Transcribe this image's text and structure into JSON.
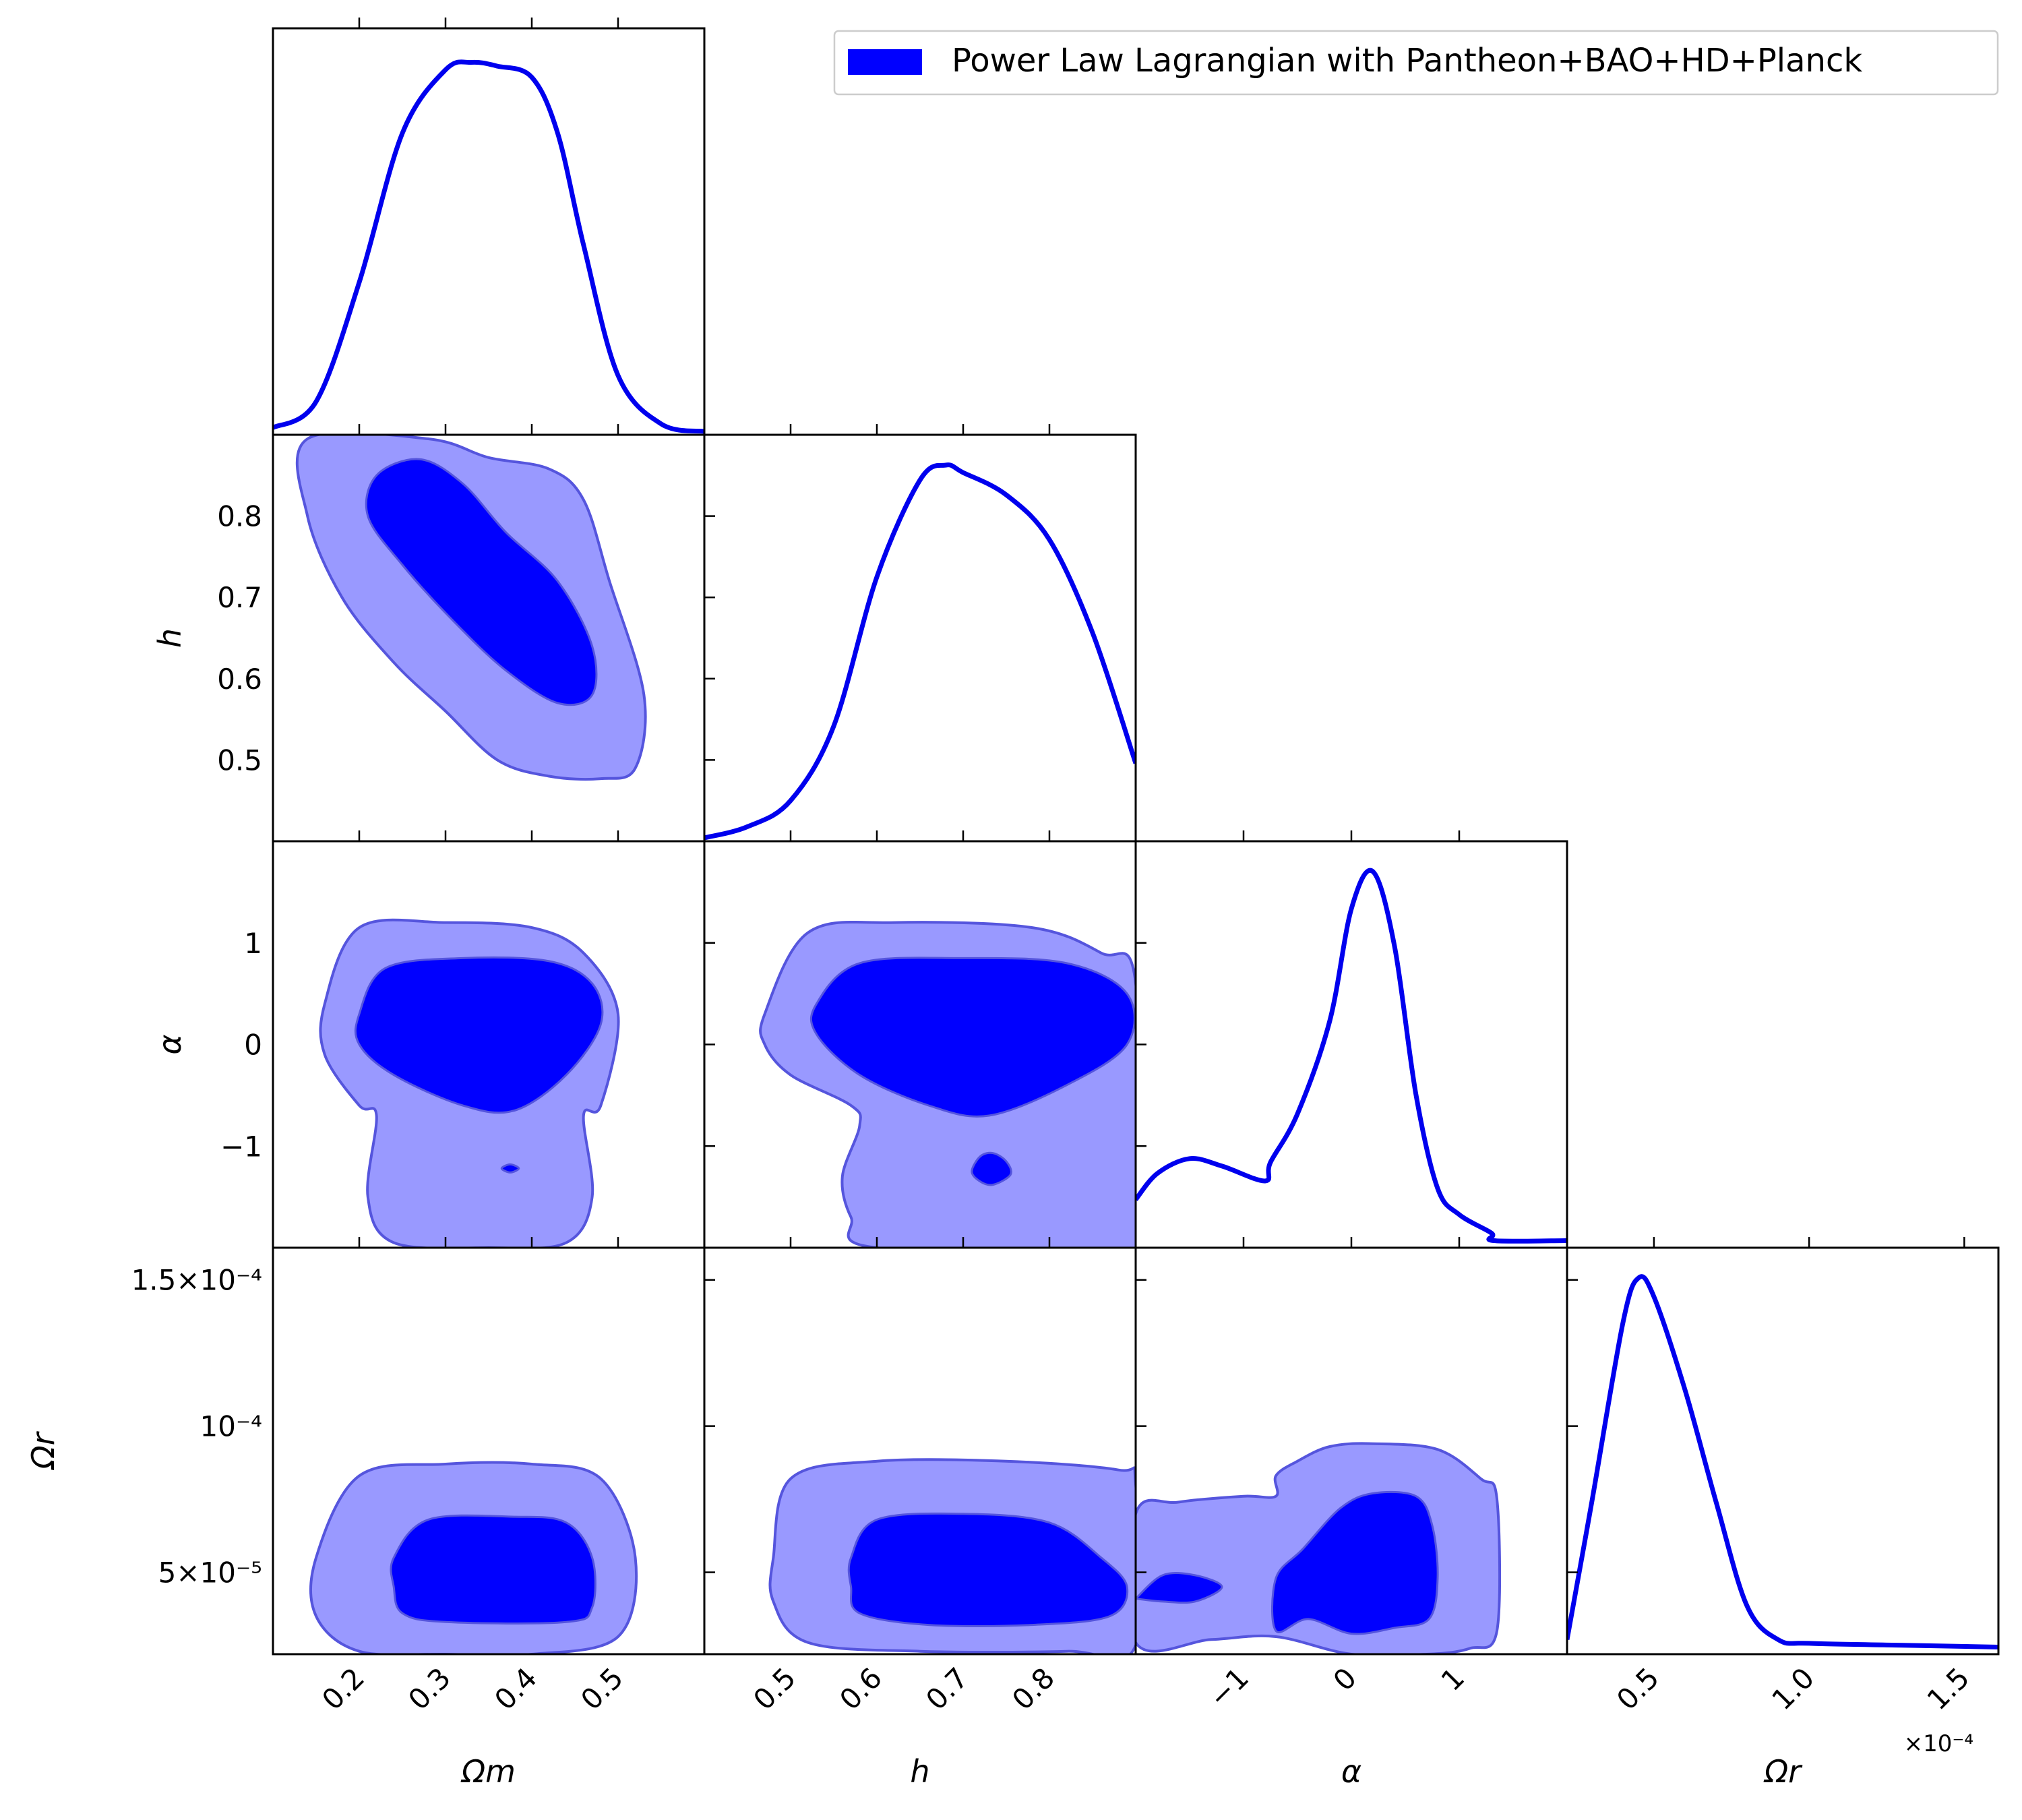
{
  "colors": {
    "line": "#0000ee",
    "inner_fill": "#0000ff",
    "outer_fill": "#9999ff",
    "contour_edge": "#5555dd"
  },
  "legend": {
    "label": "Power Law Lagrangian with Pantheon+BAO+HD+Planck",
    "placement": "top-right"
  },
  "offset_label": "×10⁻⁴",
  "chart_data": {
    "type": "triangle-corner-plot",
    "parameters": [
      {
        "id": "Om",
        "label": "Ωm",
        "range": [
          0.1,
          0.6
        ],
        "ticks": [
          0.2,
          0.3,
          0.4,
          0.5
        ],
        "tick_labels": [
          "0.2",
          "0.3",
          "0.4",
          "0.5"
        ]
      },
      {
        "id": "h",
        "label": "h",
        "range": [
          0.4,
          0.9
        ],
        "ticks": [
          0.5,
          0.6,
          0.7,
          0.8
        ],
        "tick_labels": [
          "0.5",
          "0.6",
          "0.7",
          "0.8"
        ]
      },
      {
        "id": "alpha",
        "label": "α",
        "range": [
          -2.0,
          2.0
        ],
        "ticks": [
          -1,
          0,
          1
        ],
        "tick_labels": [
          "−1",
          "0",
          "1"
        ]
      },
      {
        "id": "Or",
        "label": "Ωr",
        "range": [
          2.2e-05,
          0.000161
        ],
        "ticks": [
          5e-05,
          0.0001,
          0.00015
        ],
        "tick_labels": [
          "5×10⁻⁵",
          "10⁻⁴",
          "1.5×10⁻⁴"
        ],
        "bottom_ticks": [
          5e-05,
          0.0001,
          0.00015
        ],
        "bottom_tick_labels": [
          "0.5",
          "1.0",
          "1.5"
        ]
      }
    ],
    "marginals": {
      "Om": [
        [
          0.1,
          0.01
        ],
        [
          0.15,
          0.08
        ],
        [
          0.2,
          0.4
        ],
        [
          0.25,
          0.8
        ],
        [
          0.3,
          0.97
        ],
        [
          0.33,
          0.99
        ],
        [
          0.36,
          0.98
        ],
        [
          0.4,
          0.95
        ],
        [
          0.43,
          0.8
        ],
        [
          0.46,
          0.5
        ],
        [
          0.5,
          0.15
        ],
        [
          0.55,
          0.02
        ],
        [
          0.6,
          0.0
        ]
      ],
      "h": [
        [
          0.4,
          0.0
        ],
        [
          0.45,
          0.03
        ],
        [
          0.5,
          0.1
        ],
        [
          0.55,
          0.3
        ],
        [
          0.6,
          0.7
        ],
        [
          0.65,
          0.96
        ],
        [
          0.68,
          1.0
        ],
        [
          0.7,
          0.98
        ],
        [
          0.75,
          0.92
        ],
        [
          0.8,
          0.8
        ],
        [
          0.85,
          0.55
        ],
        [
          0.9,
          0.2
        ]
      ],
      "alpha": [
        [
          -2.0,
          0.12
        ],
        [
          -1.8,
          0.19
        ],
        [
          -1.5,
          0.23
        ],
        [
          -1.2,
          0.21
        ],
        [
          -0.8,
          0.17
        ],
        [
          -0.75,
          0.22
        ],
        [
          -0.5,
          0.35
        ],
        [
          -0.2,
          0.6
        ],
        [
          0.0,
          0.9
        ],
        [
          0.2,
          1.0
        ],
        [
          0.4,
          0.8
        ],
        [
          0.6,
          0.4
        ],
        [
          0.8,
          0.15
        ],
        [
          1.0,
          0.08
        ],
        [
          1.3,
          0.03
        ],
        [
          1.32,
          0.01
        ],
        [
          2.0,
          0.01
        ]
      ],
      "Or": [
        [
          2.2e-05,
          0.03
        ],
        [
          3e-05,
          0.4
        ],
        [
          4e-05,
          0.88
        ],
        [
          4.5e-05,
          1.0
        ],
        [
          5e-05,
          0.95
        ],
        [
          6e-05,
          0.7
        ],
        [
          7e-05,
          0.4
        ],
        [
          8e-05,
          0.12
        ],
        [
          9e-05,
          0.03
        ],
        [
          0.0001,
          0.02
        ],
        [
          0.00013,
          0.015
        ],
        [
          0.000161,
          0.01
        ]
      ]
    },
    "contours": [
      {
        "x": "Om",
        "y": "h",
        "outer": [
          [
            0.14,
            0.895
          ],
          [
            0.28,
            0.895
          ],
          [
            0.35,
            0.872
          ],
          [
            0.42,
            0.858
          ],
          [
            0.46,
            0.82
          ],
          [
            0.49,
            0.72
          ],
          [
            0.53,
            0.58
          ],
          [
            0.52,
            0.49
          ],
          [
            0.48,
            0.477
          ],
          [
            0.42,
            0.48
          ],
          [
            0.36,
            0.5
          ],
          [
            0.3,
            0.56
          ],
          [
            0.24,
            0.62
          ],
          [
            0.18,
            0.7
          ],
          [
            0.14,
            0.8
          ]
        ],
        "inner": [
          [
            [
              0.22,
              0.85
            ],
            [
              0.27,
              0.87
            ],
            [
              0.32,
              0.84
            ],
            [
              0.37,
              0.78
            ],
            [
              0.43,
              0.72
            ],
            [
              0.47,
              0.64
            ],
            [
              0.47,
              0.58
            ],
            [
              0.43,
              0.57
            ],
            [
              0.37,
              0.61
            ],
            [
              0.31,
              0.67
            ],
            [
              0.25,
              0.74
            ],
            [
              0.21,
              0.8
            ]
          ]
        ]
      },
      {
        "x": "Om",
        "y": "alpha",
        "outer": [
          [
            0.16,
            0.4
          ],
          [
            0.2,
            1.15
          ],
          [
            0.3,
            1.2
          ],
          [
            0.4,
            1.15
          ],
          [
            0.46,
            0.9
          ],
          [
            0.5,
            0.3
          ],
          [
            0.48,
            -0.6
          ],
          [
            0.46,
            -0.7
          ],
          [
            0.47,
            -1.5
          ],
          [
            0.44,
            -1.95
          ],
          [
            0.35,
            -2.0
          ],
          [
            0.24,
            -1.95
          ],
          [
            0.21,
            -1.5
          ],
          [
            0.22,
            -0.7
          ],
          [
            0.2,
            -0.6
          ],
          [
            0.16,
            -0.1
          ]
        ],
        "inner": [
          [
            [
              0.2,
              0.3
            ],
            [
              0.23,
              0.75
            ],
            [
              0.32,
              0.85
            ],
            [
              0.42,
              0.82
            ],
            [
              0.47,
              0.6
            ],
            [
              0.48,
              0.2
            ],
            [
              0.44,
              -0.3
            ],
            [
              0.38,
              -0.65
            ],
            [
              0.32,
              -0.6
            ],
            [
              0.24,
              -0.3
            ],
            [
              0.2,
              0.0
            ]
          ],
          [
            [
              0.365,
              -1.22
            ],
            [
              0.375,
              -1.18
            ],
            [
              0.385,
              -1.22
            ],
            [
              0.375,
              -1.26
            ]
          ]
        ]
      },
      {
        "x": "h",
        "y": "alpha",
        "outer": [
          [
            0.47,
            0.3
          ],
          [
            0.52,
            1.1
          ],
          [
            0.62,
            1.2
          ],
          [
            0.78,
            1.15
          ],
          [
            0.86,
            0.9
          ],
          [
            0.9,
            0.6
          ],
          [
            0.9,
            -2.0
          ],
          [
            0.6,
            -2.0
          ],
          [
            0.57,
            -1.7
          ],
          [
            0.56,
            -1.3
          ],
          [
            0.58,
            -0.8
          ],
          [
            0.57,
            -0.6
          ],
          [
            0.5,
            -0.3
          ],
          [
            0.47,
            0.0
          ]
        ],
        "inner": [
          [
            [
              0.53,
              0.4
            ],
            [
              0.58,
              0.8
            ],
            [
              0.7,
              0.85
            ],
            [
              0.82,
              0.8
            ],
            [
              0.89,
              0.5
            ],
            [
              0.89,
              0.0
            ],
            [
              0.82,
              -0.4
            ],
            [
              0.73,
              -0.7
            ],
            [
              0.66,
              -0.6
            ],
            [
              0.58,
              -0.3
            ],
            [
              0.53,
              0.1
            ]
          ],
          [
            [
              0.71,
              -1.25
            ],
            [
              0.72,
              -1.1
            ],
            [
              0.735,
              -1.07
            ],
            [
              0.75,
              -1.15
            ],
            [
              0.755,
              -1.28
            ],
            [
              0.735,
              -1.38
            ],
            [
              0.72,
              -1.35
            ]
          ]
        ]
      },
      {
        "x": "Om",
        "y": "Or",
        "outer": [
          [
            0.15,
            5.5e-05
          ],
          [
            0.2,
            8.3e-05
          ],
          [
            0.3,
            8.7e-05
          ],
          [
            0.4,
            8.7e-05
          ],
          [
            0.48,
            8.2e-05
          ],
          [
            0.52,
            5.5e-05
          ],
          [
            0.5,
            2.8e-05
          ],
          [
            0.4,
            2.2e-05
          ],
          [
            0.3,
            2.2e-05
          ],
          [
            0.2,
            2.3e-05
          ],
          [
            0.15,
            3.5e-05
          ]
        ],
        "inner": [
          [
            [
              0.24,
              5.5e-05
            ],
            [
              0.28,
              6.8e-05
            ],
            [
              0.38,
              6.9e-05
            ],
            [
              0.44,
              6.7e-05
            ],
            [
              0.47,
              5.5e-05
            ],
            [
              0.47,
              3.8e-05
            ],
            [
              0.44,
              3.3e-05
            ],
            [
              0.3,
              3.3e-05
            ],
            [
              0.25,
              3.6e-05
            ],
            [
              0.24,
              4.5e-05
            ]
          ]
        ]
      },
      {
        "x": "h",
        "y": "Or",
        "outer": [
          [
            0.48,
            5.5e-05
          ],
          [
            0.5,
            8.2e-05
          ],
          [
            0.6,
            8.8e-05
          ],
          [
            0.75,
            8.8e-05
          ],
          [
            0.88,
            8.5e-05
          ],
          [
            0.9,
            8e-05
          ],
          [
            0.9,
            2.5e-05
          ],
          [
            0.82,
            2.3e-05
          ],
          [
            0.65,
            2.3e-05
          ],
          [
            0.52,
            2.6e-05
          ],
          [
            0.48,
            4e-05
          ]
        ],
        "inner": [
          [
            [
              0.57,
              5.5e-05
            ],
            [
              0.6,
              6.8e-05
            ],
            [
              0.7,
              7e-05
            ],
            [
              0.8,
              6.7e-05
            ],
            [
              0.86,
              5.5e-05
            ],
            [
              0.89,
              4.5e-05
            ],
            [
              0.87,
              3.5e-05
            ],
            [
              0.78,
              3.2e-05
            ],
            [
              0.66,
              3.2e-05
            ],
            [
              0.58,
              3.6e-05
            ],
            [
              0.57,
              4.5e-05
            ]
          ]
        ]
      },
      {
        "x": "alpha",
        "y": "Or",
        "outer": [
          [
            -2.0,
            7e-05
          ],
          [
            -1.6,
            7.4e-05
          ],
          [
            -1.0,
            7.6e-05
          ],
          [
            -0.7,
            7.6e-05
          ],
          [
            -0.7,
            8.3e-05
          ],
          [
            -0.5,
            8.8e-05
          ],
          [
            -0.2,
            9.3e-05
          ],
          [
            0.2,
            9.4e-05
          ],
          [
            0.8,
            9.2e-05
          ],
          [
            1.2,
            8.2e-05
          ],
          [
            1.35,
            7.5e-05
          ],
          [
            1.35,
            3e-05
          ],
          [
            1.1,
            2.4e-05
          ],
          [
            0.7,
            2.2e-05
          ],
          [
            0.0,
            2.2e-05
          ],
          [
            -0.7,
            2.8e-05
          ],
          [
            -1.3,
            2.7e-05
          ],
          [
            -2.0,
            2.6e-05
          ]
        ],
        "inner": [
          [
            [
              -0.7,
              3e-05
            ],
            [
              -0.7,
              4.8e-05
            ],
            [
              -0.45,
              5.8e-05
            ],
            [
              -0.1,
              7.2e-05
            ],
            [
              0.2,
              7.7e-05
            ],
            [
              0.6,
              7.6e-05
            ],
            [
              0.75,
              6.6e-05
            ],
            [
              0.8,
              4.8e-05
            ],
            [
              0.72,
              3.4e-05
            ],
            [
              0.4,
              3.1e-05
            ],
            [
              0.0,
              2.9e-05
            ],
            [
              -0.4,
              3.4e-05
            ]
          ],
          [
            [
              -2.0,
              4.1e-05
            ],
            [
              -1.75,
              4.9e-05
            ],
            [
              -1.45,
              4.9e-05
            ],
            [
              -1.2,
              4.5e-05
            ],
            [
              -1.45,
              4e-05
            ],
            [
              -1.75,
              4e-05
            ],
            [
              -2.0,
              4.1e-05
            ]
          ]
        ]
      }
    ]
  }
}
